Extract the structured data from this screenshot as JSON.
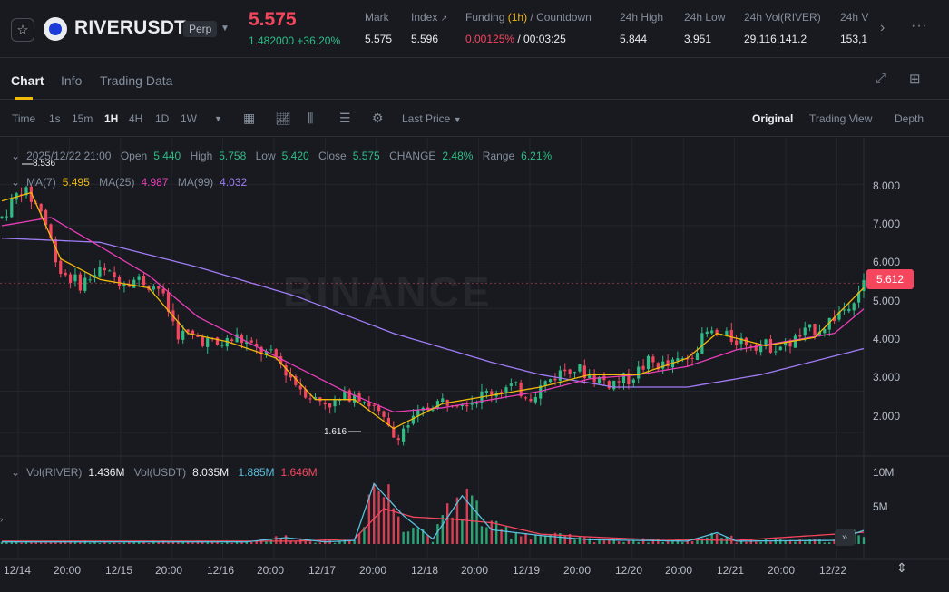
{
  "header": {
    "symbol": "RIVERUSDT",
    "contract_type": "Perp",
    "last_price": "5.575",
    "change_abs": "1.482000",
    "change_pct": "+36.20%",
    "mark_label": "Mark",
    "mark_value": "5.575",
    "index_label": "Index",
    "index_value": "5.596",
    "funding_label": "Funding",
    "funding_interval": "(1h)",
    "countdown_label": "/ Countdown",
    "funding_rate": "0.00125%",
    "countdown": "/ 00:03:25",
    "high_label": "24h High",
    "high_value": "5.844",
    "low_label": "24h Low",
    "low_value": "3.951",
    "vol_label": "24h Vol(RIVER)",
    "vol_value": "29,116,141.2",
    "vol2_label": "24h V",
    "vol2_value": "153,1"
  },
  "tabs": [
    "Chart",
    "Info",
    "Trading Data"
  ],
  "toolbar": {
    "time_label": "Time",
    "intervals": [
      "1s",
      "15m",
      "1H",
      "4H",
      "1D",
      "1W"
    ],
    "active_interval": "1H",
    "price_type": "Last Price",
    "views": [
      "Original",
      "Trading View",
      "Depth"
    ],
    "active_view": "Original"
  },
  "ohlc": {
    "time": "2025/12/22 21:00",
    "open_label": "Open",
    "open": "5.440",
    "high_label": "High",
    "high": "5.758",
    "low_label": "Low",
    "low": "5.420",
    "close_label": "Close",
    "close": "5.575",
    "change_label": "CHANGE",
    "change": "2.48%",
    "range_label": "Range",
    "range": "6.21%"
  },
  "ma_legend": {
    "ma7_label": "MA(7)",
    "ma7": "5.495",
    "ma25_label": "MA(25)",
    "ma25": "4.987",
    "ma99_label": "MA(99)",
    "ma99": "4.032"
  },
  "vol_legend": {
    "river_label": "Vol(RIVER)",
    "river": "1.436M",
    "usdt_label": "Vol(USDT)",
    "usdt": "8.035M",
    "ma1": "1.885M",
    "ma2": "1.646M"
  },
  "watermark": "BINANCE",
  "current_price_tag": "5.612",
  "annotations": {
    "high": "8.536",
    "low": "1.616"
  },
  "price_axis": [
    "8.000",
    "7.000",
    "6.000",
    "5.000",
    "4.000",
    "3.000",
    "2.000"
  ],
  "volume_axis": [
    "10M",
    "5M"
  ],
  "time_axis": [
    "12/14",
    "20:00",
    "12/15",
    "20:00",
    "12/16",
    "20:00",
    "12/17",
    "20:00",
    "12/18",
    "20:00",
    "12/19",
    "20:00",
    "12/20",
    "20:00",
    "12/21",
    "20:00",
    "12/22"
  ],
  "colors": {
    "up": "#2ebd85",
    "down": "#f6465d",
    "ma7": "#f0b90b",
    "ma25": "#e93eb8",
    "ma99": "#a07cf5",
    "vol_ma1": "#5bc0de",
    "vol_ma2": "#f6465d"
  },
  "chart_data": {
    "type": "candlestick",
    "interval": "1H",
    "ylim": [
      1.5,
      8.6
    ],
    "price_trend": [
      [
        0,
        7.2
      ],
      [
        4,
        7.9
      ],
      [
        8,
        7.4
      ],
      [
        12,
        5.9
      ],
      [
        16,
        5.6
      ],
      [
        20,
        5.9
      ],
      [
        24,
        5.7
      ],
      [
        28,
        5.7
      ],
      [
        32,
        5.5
      ],
      [
        36,
        4.4
      ],
      [
        40,
        4.3
      ],
      [
        44,
        4.1
      ],
      [
        48,
        4.3
      ],
      [
        52,
        4.0
      ],
      [
        56,
        3.8
      ],
      [
        60,
        3.2
      ],
      [
        64,
        2.8
      ],
      [
        68,
        2.7
      ],
      [
        72,
        3.0
      ],
      [
        76,
        2.6
      ],
      [
        80,
        1.9
      ],
      [
        84,
        2.3
      ],
      [
        88,
        2.7
      ],
      [
        92,
        2.8
      ],
      [
        96,
        2.8
      ],
      [
        100,
        3.0
      ],
      [
        104,
        3.1
      ],
      [
        108,
        2.9
      ],
      [
        112,
        3.3
      ],
      [
        116,
        3.6
      ],
      [
        120,
        3.4
      ],
      [
        124,
        3.2
      ],
      [
        128,
        3.3
      ],
      [
        132,
        3.7
      ],
      [
        136,
        3.6
      ],
      [
        140,
        3.8
      ],
      [
        144,
        4.4
      ],
      [
        148,
        4.3
      ],
      [
        152,
        4.2
      ],
      [
        156,
        4.1
      ],
      [
        160,
        4.1
      ],
      [
        164,
        4.4
      ],
      [
        168,
        4.6
      ],
      [
        172,
        5.0
      ],
      [
        176,
        5.6
      ]
    ],
    "ma7_trend": [
      [
        0,
        7.6
      ],
      [
        6,
        7.8
      ],
      [
        12,
        6.2
      ],
      [
        20,
        5.7
      ],
      [
        30,
        5.5
      ],
      [
        38,
        4.4
      ],
      [
        46,
        4.2
      ],
      [
        56,
        3.8
      ],
      [
        64,
        2.8
      ],
      [
        72,
        2.8
      ],
      [
        80,
        2.1
      ],
      [
        90,
        2.7
      ],
      [
        100,
        2.9
      ],
      [
        110,
        3.1
      ],
      [
        120,
        3.4
      ],
      [
        130,
        3.4
      ],
      [
        140,
        3.8
      ],
      [
        146,
        4.4
      ],
      [
        156,
        4.1
      ],
      [
        166,
        4.3
      ],
      [
        176,
        5.5
      ]
    ],
    "ma25_trend": [
      [
        0,
        7.0
      ],
      [
        10,
        7.2
      ],
      [
        20,
        6.5
      ],
      [
        30,
        5.8
      ],
      [
        40,
        4.8
      ],
      [
        50,
        4.2
      ],
      [
        60,
        3.6
      ],
      [
        70,
        3.0
      ],
      [
        80,
        2.5
      ],
      [
        90,
        2.6
      ],
      [
        100,
        2.8
      ],
      [
        110,
        3.0
      ],
      [
        120,
        3.3
      ],
      [
        130,
        3.4
      ],
      [
        140,
        3.6
      ],
      [
        150,
        4.0
      ],
      [
        160,
        4.2
      ],
      [
        170,
        4.4
      ],
      [
        176,
        4.99
      ]
    ],
    "ma99_trend": [
      [
        0,
        6.7
      ],
      [
        20,
        6.6
      ],
      [
        40,
        6.0
      ],
      [
        60,
        5.3
      ],
      [
        80,
        4.4
      ],
      [
        100,
        3.7
      ],
      [
        110,
        3.4
      ],
      [
        125,
        3.1
      ],
      [
        140,
        3.1
      ],
      [
        155,
        3.4
      ],
      [
        176,
        4.03
      ]
    ],
    "volume_ma1_trend": [
      [
        0,
        0.3
      ],
      [
        50,
        0.3
      ],
      [
        58,
        0.9
      ],
      [
        66,
        0.3
      ],
      [
        72,
        0.5
      ],
      [
        76,
        8.5
      ],
      [
        82,
        4.0
      ],
      [
        88,
        0.7
      ],
      [
        94,
        6.8
      ],
      [
        100,
        2.0
      ],
      [
        110,
        1.2
      ],
      [
        120,
        0.6
      ],
      [
        130,
        0.5
      ],
      [
        140,
        0.4
      ],
      [
        146,
        1.6
      ],
      [
        150,
        0.4
      ],
      [
        170,
        0.5
      ],
      [
        176,
        1.9
      ]
    ],
    "volume_ma2_trend": [
      [
        0,
        0.4
      ],
      [
        60,
        0.4
      ],
      [
        72,
        0.7
      ],
      [
        78,
        5.0
      ],
      [
        84,
        3.8
      ],
      [
        92,
        3.5
      ],
      [
        100,
        3.0
      ],
      [
        110,
        1.4
      ],
      [
        120,
        1.0
      ],
      [
        130,
        0.7
      ],
      [
        150,
        0.5
      ],
      [
        176,
        1.65
      ]
    ]
  }
}
